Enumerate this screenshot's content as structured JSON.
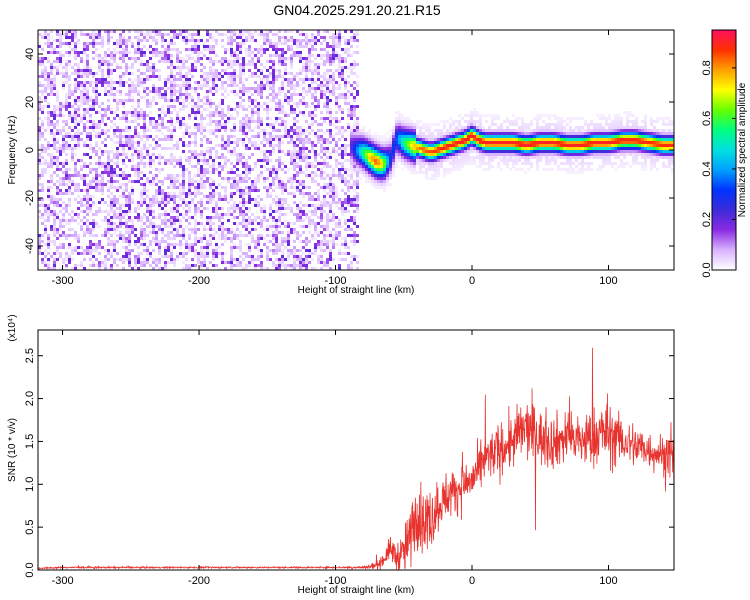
{
  "figure": {
    "title": "GN04.2025.291.20.21.R15"
  },
  "chart_data": [
    {
      "type": "heatmap",
      "title": "GN04.2025.291.20.21.R15",
      "xlabel": "Height of straight line (km)",
      "ylabel": "Frequency (Hz)",
      "xlim": [
        -318,
        148
      ],
      "ylim": [
        -50,
        50
      ],
      "x_ticks": [
        -300,
        -200,
        -100,
        0,
        100
      ],
      "x_tick_labels": [
        "-300",
        "-200",
        "-100",
        "0",
        "100"
      ],
      "y_ticks": [
        -40,
        -20,
        0,
        20,
        40
      ],
      "y_tick_labels": [
        "-40",
        "-20",
        "0",
        "20",
        "40"
      ],
      "colorbar": {
        "label": "Normalized spectral amplitude",
        "range": [
          0.0,
          0.95
        ],
        "ticks": [
          0.0,
          0.2,
          0.4,
          0.6,
          0.8
        ],
        "tick_labels": [
          "0.0",
          "0.2",
          "0.4",
          "0.6",
          "0.8"
        ],
        "colormap": [
          "#ffffff",
          "#d9b3ff",
          "#8a2be2",
          "#3d2bd9",
          "#0033ff",
          "#00a0ff",
          "#00e0e0",
          "#00ff80",
          "#66ff00",
          "#ffff00",
          "#ffa000",
          "#ff3000",
          "#ff1060"
        ]
      },
      "noise_region_x": [
        -318,
        -82
      ],
      "noise_amplitude": 0.12,
      "signal_ridge": {
        "x": [
          -90,
          -85,
          -80,
          -75,
          -70,
          -65,
          -60,
          -55,
          -50,
          -45,
          -40,
          -35,
          -30,
          -25,
          -20,
          -15,
          -10,
          -5,
          0,
          5,
          10,
          15,
          20,
          30,
          40,
          50,
          60,
          70,
          80,
          90,
          100,
          110,
          120,
          130,
          140,
          148
        ],
        "freq": [
          2,
          0,
          -1,
          -3,
          -5,
          -6,
          -4,
          5,
          3,
          2,
          1,
          0,
          -1,
          0,
          1,
          2,
          3,
          4,
          6,
          4,
          3,
          3,
          3,
          3,
          2,
          3,
          3,
          2,
          2,
          3,
          3,
          4,
          4,
          3,
          2,
          2
        ],
        "amplitude": [
          0.15,
          0.35,
          0.55,
          0.75,
          0.85,
          0.7,
          0.3,
          0.35,
          0.55,
          0.7,
          0.8,
          0.85,
          0.85,
          0.88,
          0.9,
          0.9,
          0.9,
          0.92,
          0.92,
          0.9,
          0.9,
          0.9,
          0.9,
          0.9,
          0.92,
          0.9,
          0.9,
          0.9,
          0.9,
          0.9,
          0.9,
          0.9,
          0.9,
          0.88,
          0.88,
          0.88
        ]
      }
    },
    {
      "type": "line",
      "xlabel": "Height of straight line (km)",
      "ylabel": "SNR (10 * v/v)",
      "scale_label": "(x10⁴)",
      "xlim": [
        -318,
        148
      ],
      "ylim": [
        0,
        2.8
      ],
      "x_ticks": [
        -300,
        -200,
        -100,
        0,
        100
      ],
      "x_tick_labels": [
        "-300",
        "-200",
        "-100",
        "0",
        "100"
      ],
      "y_ticks": [
        0.0,
        0.5,
        1.0,
        1.5,
        2.0,
        2.5
      ],
      "y_tick_labels": [
        "0.0",
        "0.5",
        "1.0",
        "1.5",
        "2.0",
        "2.5"
      ],
      "color": "#e8322d",
      "series": [
        {
          "x": [
            -318,
            -300,
            -250,
            -200,
            -150,
            -100,
            -80,
            -70,
            -65,
            -60,
            -55,
            -50,
            -45,
            -40,
            -35,
            -30,
            -25,
            -20,
            -15,
            -10,
            -5,
            0,
            5,
            10,
            15,
            20,
            25,
            30,
            35,
            40,
            45,
            50,
            55,
            60,
            70,
            80,
            90,
            95,
            100,
            105,
            110,
            120,
            130,
            140,
            148
          ],
          "y": [
            0.02,
            0.03,
            0.03,
            0.03,
            0.03,
            0.03,
            0.03,
            0.05,
            0.12,
            0.25,
            0.15,
            0.2,
            0.4,
            0.7,
            0.55,
            0.6,
            0.75,
            0.85,
            0.9,
            0.95,
            1.0,
            1.05,
            1.15,
            1.3,
            1.35,
            1.4,
            1.45,
            1.5,
            1.6,
            1.65,
            1.6,
            1.55,
            1.5,
            1.5,
            1.55,
            1.5,
            1.55,
            1.6,
            1.6,
            1.55,
            1.5,
            1.45,
            1.4,
            1.35,
            1.3
          ],
          "noise": [
            0.01,
            0.01,
            0.01,
            0.01,
            0.01,
            0.01,
            0.02,
            0.05,
            0.1,
            0.15,
            0.2,
            0.3,
            0.4,
            0.45,
            0.45,
            0.4,
            0.35,
            0.3,
            0.3,
            0.3,
            0.3,
            0.3,
            0.3,
            0.3,
            0.3,
            0.35,
            0.35,
            0.35,
            0.4,
            0.4,
            0.4,
            0.35,
            0.35,
            0.35,
            0.35,
            0.35,
            0.4,
            0.45,
            0.45,
            0.35,
            0.3,
            0.3,
            0.25,
            0.25,
            0.25
          ]
        }
      ]
    }
  ]
}
